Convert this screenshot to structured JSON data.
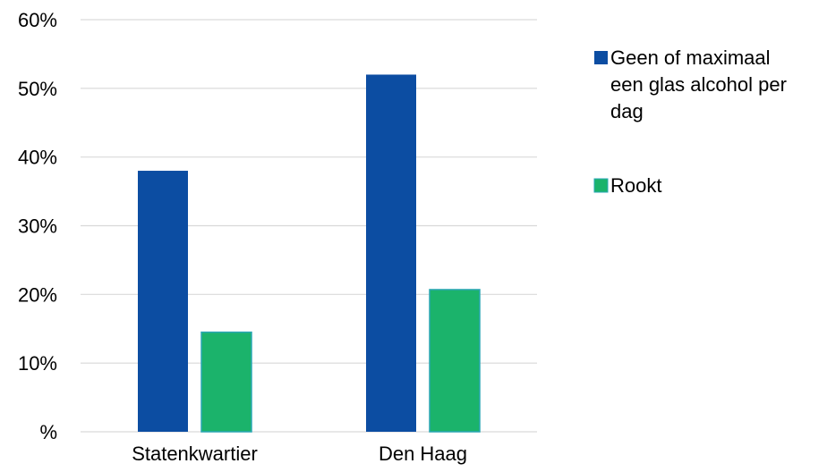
{
  "chart_data": {
    "type": "bar",
    "categories": [
      "Statenkwartier",
      "Den Haag"
    ],
    "series": [
      {
        "name": "Geen of maximaal een glas alcohol per dag",
        "legend_lines": [
          "Geen of maximaal",
          "een glas alcohol per",
          "dag"
        ],
        "values": [
          38,
          52
        ],
        "color": "#0c4da2"
      },
      {
        "name": "Rookt",
        "legend_lines": [
          "Rookt"
        ],
        "values": [
          14.5,
          20.7
        ],
        "color": "#1bb36b"
      }
    ],
    "ylim": [
      0,
      60
    ],
    "ytick_values": [
      0,
      10,
      20,
      30,
      40,
      50,
      60
    ],
    "ytick_labels": [
      "%",
      "10%",
      "20%",
      "30%",
      "40%",
      "50%",
      "60%"
    ],
    "grid": true,
    "legend_position": "right",
    "title": "",
    "xlabel": "",
    "ylabel": ""
  },
  "colors": {
    "grid": "#d9d9d9",
    "bar_outline": "#2aa7b4"
  }
}
